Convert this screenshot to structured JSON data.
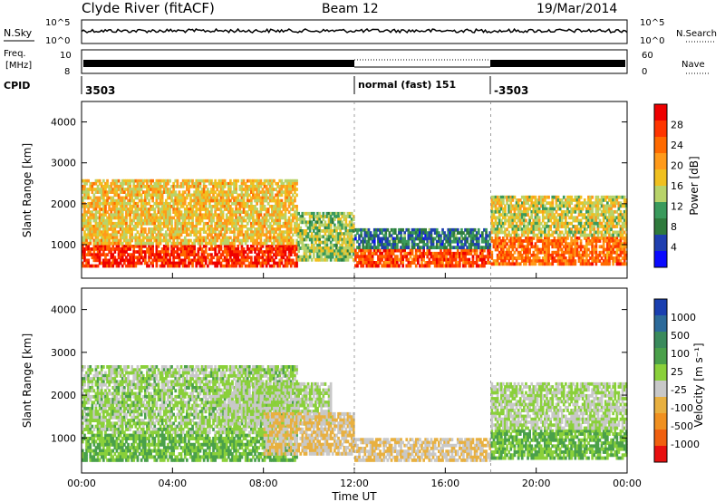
{
  "header": {
    "title": "Clyde River (fitACF)",
    "beam": "Beam 12",
    "date": "19/Mar/2014"
  },
  "noise_panel": {
    "left_label": "N.Sky",
    "left_ticks": [
      "10^5",
      "10^0"
    ],
    "right_ticks": [
      "10^5",
      "10^0"
    ],
    "right_label": "N.Search"
  },
  "freq_panel": {
    "left_label_1": "Freq.",
    "left_label_2": "[MHz]",
    "left_ticks": [
      "10",
      "8"
    ],
    "right_ticks": [
      "60",
      "0"
    ],
    "right_label": "Nave"
  },
  "cpid": {
    "label": "CPID",
    "segments": [
      {
        "label": "3503",
        "start_hour": 0
      },
      {
        "label": "normal (fast) 151",
        "start_hour": 12
      },
      {
        "label": "-3503",
        "start_hour": 18
      }
    ]
  },
  "x_axis": {
    "label": "Time UT",
    "ticks": [
      "00:00",
      "04:00",
      "08:00",
      "12:00",
      "16:00",
      "20:00",
      "00:00"
    ],
    "range_hours": [
      0,
      24
    ]
  },
  "power_panel": {
    "ylabel": "Slant Range [km]",
    "yticks": [
      "1000",
      "2000",
      "3000",
      "4000"
    ],
    "colorbar_label": "Power [dB]",
    "colorbar_ticks": [
      "4",
      "8",
      "12",
      "16",
      "20",
      "24",
      "28"
    ],
    "colors": [
      "#0a0aff",
      "#1f3fb0",
      "#2f7a3c",
      "#3a9a5c",
      "#b8d36a",
      "#f0c020",
      "#ff9a1a",
      "#ff6a00",
      "#ff3500",
      "#ee0000"
    ]
  },
  "velocity_panel": {
    "ylabel": "Slant Range [km]",
    "yticks": [
      "1000",
      "2000",
      "3000",
      "4000"
    ],
    "colorbar_label": "Velocity [m s⁻¹]",
    "colorbar_ticks": [
      "1000",
      "500",
      "100",
      "25",
      "-25",
      "-100",
      "-500",
      "-1000"
    ],
    "colors": [
      "#1a3fb0",
      "#2c6a9a",
      "#3a8a5c",
      "#4aa04a",
      "#8ad03a",
      "#c8c8c8",
      "#e8b040",
      "#f09020",
      "#f06010",
      "#e81010"
    ]
  },
  "chart_data": [
    {
      "type": "heatmap",
      "title": "Power",
      "xlabel": "Time UT",
      "ylabel": "Slant Range [km]",
      "xlim": [
        0,
        24
      ],
      "ylim": [
        180,
        4500
      ],
      "colorbar_label": "Power [dB]",
      "colorbar_range": [
        0,
        32
      ],
      "bands": [
        {
          "x_start": 0,
          "x_end": 9.5,
          "range_low": 450,
          "range_high": 1000,
          "power_db": 28
        },
        {
          "x_start": 0,
          "x_end": 9.5,
          "range_low": 1000,
          "range_high": 2600,
          "power_db": 18
        },
        {
          "x_start": 9.5,
          "x_end": 12,
          "range_low": 600,
          "range_high": 1800,
          "power_db": 14
        },
        {
          "x_start": 12,
          "x_end": 18,
          "range_low": 450,
          "range_high": 900,
          "power_db": 26
        },
        {
          "x_start": 12,
          "x_end": 18,
          "range_low": 900,
          "range_high": 1400,
          "power_db": 8
        },
        {
          "x_start": 18,
          "x_end": 24,
          "range_low": 500,
          "range_high": 1200,
          "power_db": 24
        },
        {
          "x_start": 18,
          "x_end": 24,
          "range_low": 1200,
          "range_high": 2200,
          "power_db": 16
        }
      ]
    },
    {
      "type": "heatmap",
      "title": "Velocity",
      "xlabel": "Time UT",
      "ylabel": "Slant Range [km]",
      "xlim": [
        0,
        24
      ],
      "ylim": [
        180,
        4500
      ],
      "colorbar_label": "Velocity [m s⁻¹]",
      "colorbar_range": [
        -1000,
        1000
      ],
      "bands": [
        {
          "x_start": 0,
          "x_end": 9.5,
          "range_low": 450,
          "range_high": 1100,
          "velocity": 200
        },
        {
          "x_start": 0,
          "x_end": 9.5,
          "range_low": 1100,
          "range_high": 2700,
          "velocity": 60
        },
        {
          "x_start": 6,
          "x_end": 11,
          "range_low": 1300,
          "range_high": 2300,
          "velocity": 0
        },
        {
          "x_start": 8,
          "x_end": 12,
          "range_low": 600,
          "range_high": 1600,
          "velocity": -200
        },
        {
          "x_start": 12,
          "x_end": 18,
          "range_low": 450,
          "range_high": 1000,
          "velocity": -200
        },
        {
          "x_start": 18,
          "x_end": 24,
          "range_low": 500,
          "range_high": 1200,
          "velocity": 200
        },
        {
          "x_start": 18,
          "x_end": 24,
          "range_low": 1200,
          "range_high": 2300,
          "velocity": 0
        }
      ]
    }
  ]
}
